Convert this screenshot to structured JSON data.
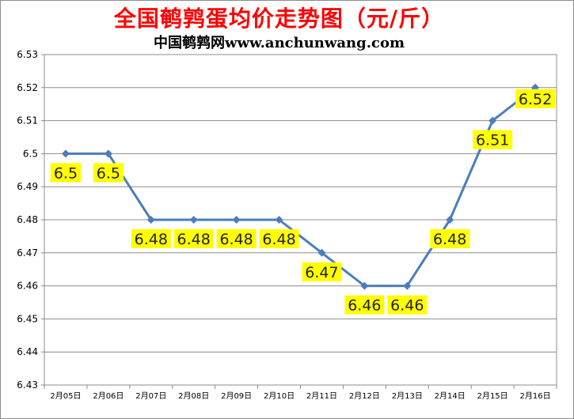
{
  "title": "全国鹌鹑蛋均价走势图（元/斤）",
  "subtitle": "中国鹌鹑网www.anchunwang.com",
  "colors": {
    "title": "#ff0000",
    "line": "#4a7ebb",
    "grid": "#8c8c8c",
    "label_bg": "#ffff00"
  },
  "chart_data": {
    "type": "line",
    "title": "全国鹌鹑蛋均价走势图（元/斤）",
    "subtitle": "中国鹌鹑网www.anchunwang.com",
    "categories": [
      "2月05日",
      "2月06日",
      "2月07日",
      "2月08日",
      "2月09日",
      "2月10日",
      "2月11日",
      "2月12日",
      "2月13日",
      "2月14日",
      "2月15日",
      "2月16日"
    ],
    "series": [
      {
        "values": [
          6.5,
          6.5,
          6.48,
          6.48,
          6.48,
          6.48,
          6.47,
          6.46,
          6.46,
          6.48,
          6.51,
          6.52
        ],
        "data_labels": [
          "6.5",
          "6.5",
          "6.48",
          "6.48",
          "6.48",
          "6.48",
          "6.47",
          "6.46",
          "6.46",
          "6.48",
          "6.51",
          "6.52"
        ]
      }
    ],
    "y_ticks": [
      "6.53",
      "6.52",
      "6.51",
      "6.5",
      "6.49",
      "6.48",
      "6.47",
      "6.46",
      "6.45",
      "6.44",
      "6.43"
    ],
    "ylim": [
      6.43,
      6.53
    ],
    "xlabel": "",
    "ylabel": "",
    "grid": true,
    "legend": "none",
    "marker": "diamond"
  }
}
